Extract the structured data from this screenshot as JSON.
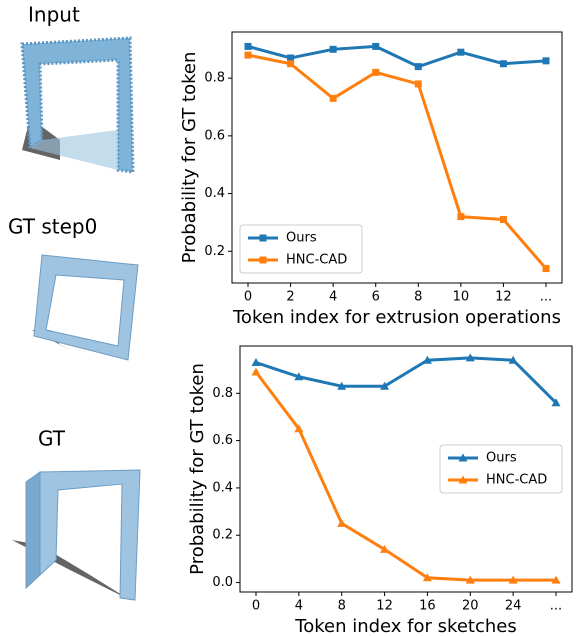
{
  "panels": [
    {
      "label": "Input"
    },
    {
      "label": "GT step0"
    },
    {
      "label": "GT"
    }
  ],
  "chart_data": [
    {
      "type": "line",
      "xlabel": "Token index for extrusion operations",
      "ylabel": "Probability for GT token",
      "categories": [
        "0",
        "2",
        "4",
        "6",
        "8",
        "10",
        "12",
        "..."
      ],
      "series": [
        {
          "name": "Ours",
          "color": "#1f77b4",
          "marker": "square",
          "values": [
            0.91,
            0.87,
            0.9,
            0.91,
            0.84,
            0.89,
            0.85,
            0.86
          ]
        },
        {
          "name": "HNC-CAD",
          "color": "#ff7f0e",
          "marker": "square",
          "values": [
            0.88,
            0.85,
            0.73,
            0.82,
            0.78,
            0.32,
            0.31,
            0.14
          ]
        }
      ],
      "ylim": [
        0.09,
        0.96
      ],
      "yticks": [
        0.2,
        0.4,
        0.6,
        0.8
      ],
      "legend": "lower left"
    },
    {
      "type": "line",
      "xlabel": "Token index for sketches",
      "ylabel": "Probability for GT token",
      "categories": [
        "0",
        "4",
        "8",
        "12",
        "16",
        "20",
        "24",
        "..."
      ],
      "series": [
        {
          "name": "Ours",
          "color": "#1f77b4",
          "marker": "triangle",
          "values": [
            0.93,
            0.87,
            0.83,
            0.83,
            0.94,
            0.95,
            0.94,
            0.76
          ]
        },
        {
          "name": "HNC-CAD",
          "color": "#ff7f0e",
          "marker": "triangle",
          "values": [
            0.89,
            0.65,
            0.25,
            0.14,
            0.02,
            0.01,
            0.01,
            0.01
          ]
        }
      ],
      "ylim": [
        -0.04,
        1.0
      ],
      "yticks": [
        {
          "value": 0,
          "label": "0.0"
        },
        0.2,
        0.4,
        0.6,
        0.8
      ],
      "legend": "center right"
    }
  ]
}
